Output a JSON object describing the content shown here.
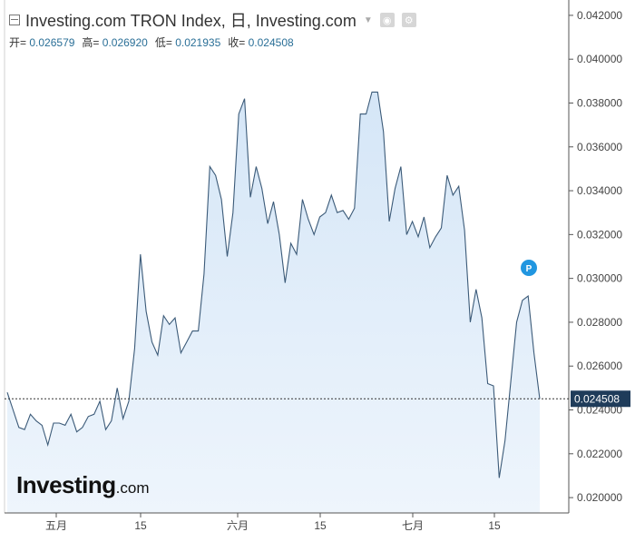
{
  "header": {
    "title": "Investing.com TRON Index, 日, Investing.com",
    "open_label": "开=",
    "open_value": "0.026579",
    "high_label": "高=",
    "high_value": "0.026920",
    "low_label": "低=",
    "low_value": "0.021935",
    "close_label": "收=",
    "close_value": "0.024508"
  },
  "logo": {
    "main": "Investing",
    "suffix": ".com"
  },
  "marker": {
    "label": "P"
  },
  "chart_data": {
    "type": "area",
    "x_ticks": [
      "五月",
      "15",
      "六月",
      "15",
      "七月",
      "15"
    ],
    "y_ticks": [
      "0.020000",
      "0.022000",
      "0.024000",
      "0.026000",
      "0.028000",
      "0.030000",
      "0.032000",
      "0.034000",
      "0.036000",
      "0.038000",
      "0.040000",
      "0.042000"
    ],
    "ylim": [
      0.0193,
      0.0427
    ],
    "last_value": 0.024508,
    "last_label": "0.024508",
    "colors": {
      "line": "#3b5a78",
      "fill_top": "#d5e6f7",
      "fill_bottom": "#eef5fc",
      "last_box": "#1f3c5a"
    },
    "values": [
      0.0248,
      0.024,
      0.0232,
      0.0231,
      0.0238,
      0.0235,
      0.0233,
      0.0224,
      0.0234,
      0.0234,
      0.0233,
      0.0238,
      0.023,
      0.0232,
      0.0237,
      0.0238,
      0.0244,
      0.0231,
      0.0235,
      0.025,
      0.0236,
      0.0244,
      0.0268,
      0.0311,
      0.0285,
      0.0271,
      0.0265,
      0.0283,
      0.0279,
      0.0282,
      0.0266,
      0.0271,
      0.0276,
      0.0276,
      0.0302,
      0.0351,
      0.0347,
      0.0336,
      0.031,
      0.033,
      0.0375,
      0.0382,
      0.0337,
      0.0351,
      0.0341,
      0.0325,
      0.0335,
      0.032,
      0.0298,
      0.0316,
      0.0311,
      0.0336,
      0.0327,
      0.032,
      0.0328,
      0.033,
      0.0338,
      0.033,
      0.0331,
      0.0327,
      0.0332,
      0.0375,
      0.0375,
      0.0385,
      0.0385,
      0.0367,
      0.0326,
      0.0341,
      0.0351,
      0.032,
      0.0326,
      0.0319,
      0.0328,
      0.0314,
      0.0319,
      0.0323,
      0.0347,
      0.0338,
      0.0342,
      0.0322,
      0.028,
      0.0295,
      0.0282,
      0.0252,
      0.0251,
      0.0209,
      0.0226,
      0.0253,
      0.028,
      0.029,
      0.0292,
      0.0266,
      0.0245
    ]
  }
}
